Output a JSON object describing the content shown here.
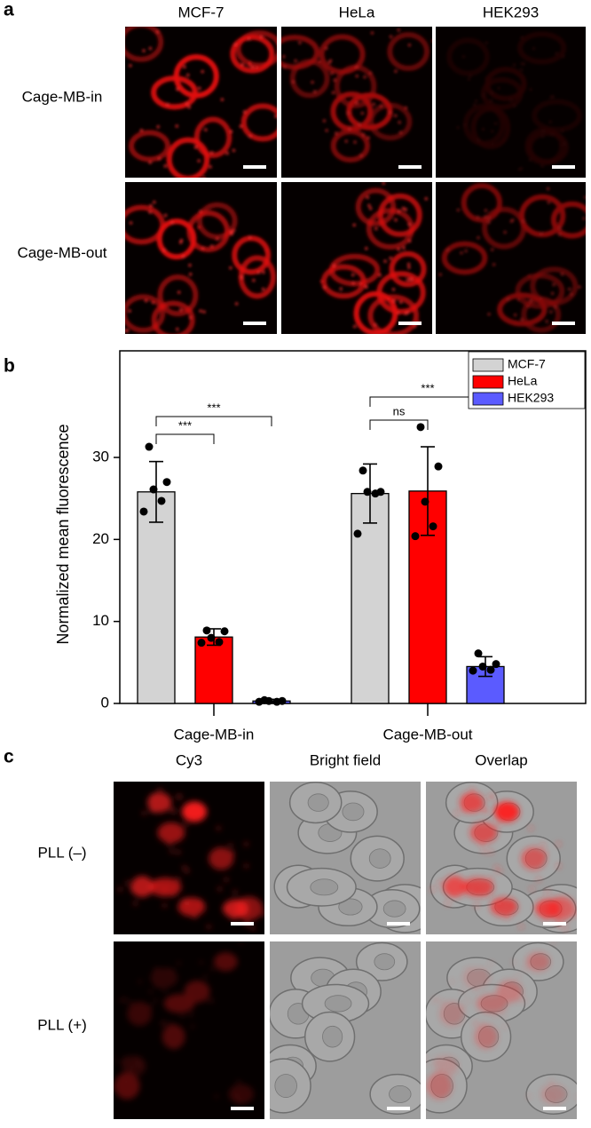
{
  "panel_a": {
    "label": "a",
    "columns": [
      "MCF-7",
      "HeLa",
      "HEK293"
    ],
    "rows": [
      "Cage-MB-in",
      "Cage-MB-out"
    ]
  },
  "panel_b": {
    "label": "b"
  },
  "chart_data": {
    "type": "bar",
    "ylabel": "Normalized mean fluorescence",
    "categories": [
      "Cage-MB-in",
      "Cage-MB-out"
    ],
    "series": [
      {
        "name": "MCF-7",
        "color": "#d3d3d3",
        "values": [
          25.8,
          25.6
        ],
        "errors": [
          3.7,
          3.6
        ],
        "points": [
          [
            31.3,
            27.0,
            26.1,
            24.7,
            23.4
          ],
          [
            28.4,
            25.8,
            25.8,
            25.6,
            20.7
          ]
        ]
      },
      {
        "name": "HeLa",
        "color": "#ff0000",
        "values": [
          8.1,
          25.9
        ],
        "errors": [
          1.0,
          5.4
        ],
        "points": [
          [
            8.9,
            8.8,
            8.0,
            7.5,
            7.4
          ],
          [
            33.7,
            28.9,
            24.6,
            21.6,
            20.4
          ]
        ]
      },
      {
        "name": "HEK293",
        "color": "#5b5bff",
        "values": [
          0.3,
          4.5
        ],
        "errors": [
          0.2,
          1.2
        ],
        "points": [
          [
            0.4,
            0.3,
            0.3,
            0.2,
            0.2
          ],
          [
            6.1,
            4.8,
            4.5,
            4.1,
            4.0
          ]
        ]
      }
    ],
    "ylim": [
      0,
      43
    ],
    "yticks": [
      0,
      10,
      20,
      30
    ],
    "legend": "upper right",
    "annotations": [
      "***",
      "***",
      "ns",
      "***"
    ]
  },
  "panel_c": {
    "label": "c",
    "columns": [
      "Cy3",
      "Bright field",
      "Overlap"
    ],
    "rows": [
      "PLL (–)",
      "PLL (+)"
    ]
  }
}
